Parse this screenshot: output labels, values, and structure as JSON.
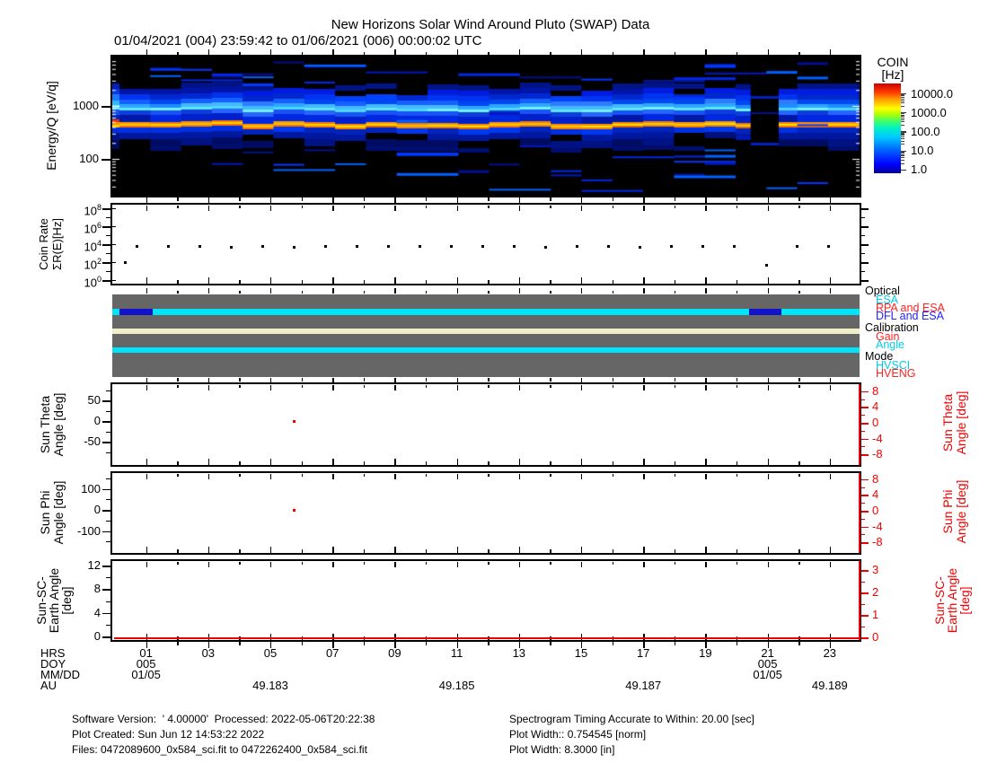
{
  "title": "New Horizons Solar Wind Around Pluto (SWAP) Data",
  "subtitle": "01/04/2021 (004) 23:59:42 to 01/06/2021 (006) 00:00:02 UTC",
  "colors": {
    "red_accent": "#f00000",
    "status_gray": "#666666",
    "stripe_cyan": "#00e4fa",
    "stripe_cream": "#f1edc6",
    "stripe_blue": "#1212cc",
    "label_cyan": "#00ccee",
    "label_red": "#ff2222",
    "label_blue": "#2222ff"
  },
  "colorbar": {
    "title1": "COIN",
    "title2": "[Hz]",
    "labels": [
      "10000.0",
      "1000.0",
      "100.0",
      "10.0",
      "1.0"
    ]
  },
  "spectrogram": {
    "ylabel": "Energy/Q [eV/q]",
    "yticks": [
      "1000",
      "100"
    ]
  },
  "coin_rate": {
    "ylabel1": "Coin Rate",
    "ylabel2": "ΣR(E)[Hz]",
    "ytick_exps": [
      "8",
      "6",
      "4",
      "2",
      "0"
    ]
  },
  "status": {
    "groups": [
      {
        "label": "Optical",
        "items": [
          {
            "label": "ESA",
            "color": "label_cyan"
          },
          {
            "label": "RPA and ESA",
            "color": "label_red"
          },
          {
            "label": "DFL and ESA",
            "color": "label_blue"
          }
        ]
      },
      {
        "label": "Calibration",
        "items": [
          {
            "label": "Gain",
            "color": "label_red"
          },
          {
            "label": "Angle",
            "color": "label_cyan"
          }
        ]
      },
      {
        "label": "Mode",
        "items": [
          {
            "label": "HVSCI",
            "color": "label_cyan"
          },
          {
            "label": "HVENG",
            "color": "label_red"
          }
        ]
      }
    ],
    "bars": [
      {
        "row": "Optical",
        "color": "stripe_cyan",
        "y_rel": 16,
        "h": 7,
        "overlays": [
          {
            "label": "DFL and ESA",
            "color": "stripe_blue",
            "hour_range": [
              0.23,
              1.3
            ]
          },
          {
            "label": "DFL and ESA",
            "color": "stripe_blue",
            "hour_range": [
              20.45,
              21.49
            ]
          }
        ]
      },
      {
        "row": "Calibration",
        "color": "stripe_cream",
        "y_rel": 38,
        "h": 6,
        "overlays": []
      },
      {
        "row": "Mode",
        "color": "stripe_cyan",
        "y_rel": 59,
        "h": 6,
        "overlays": []
      }
    ]
  },
  "sun_theta": {
    "ylabel1": "Sun Theta",
    "ylabel2": "Angle [deg]",
    "left_ticks": [
      "50",
      "0",
      "-50"
    ],
    "right_ticks": [
      "8",
      "4",
      "0",
      "-4",
      "-8"
    ]
  },
  "sun_phi": {
    "ylabel1": "Sun Phi",
    "ylabel2": "Angle [deg]",
    "left_ticks": [
      "100",
      "0",
      "-100"
    ],
    "right_ticks": [
      "8",
      "4",
      "0",
      "-4",
      "-8"
    ]
  },
  "sun_sc_earth": {
    "ylabel1": "Sun-SC-",
    "ylabel2": "Earth Angle",
    "ylabel3": "[deg]",
    "left_ticks": [
      "12",
      "8",
      "4",
      "0"
    ],
    "right_ticks": [
      "3",
      "2",
      "1",
      "0"
    ]
  },
  "xaxis": {
    "row_labels": [
      "HRS",
      "DOY",
      "MM/DD",
      "AU"
    ],
    "hour_labels": [
      {
        "hour": 1,
        "text": "01"
      },
      {
        "hour": 3,
        "text": "03"
      },
      {
        "hour": 5,
        "text": "05"
      },
      {
        "hour": 7,
        "text": "07"
      },
      {
        "hour": 9,
        "text": "09"
      },
      {
        "hour": 11,
        "text": "11"
      },
      {
        "hour": 13,
        "text": "13"
      },
      {
        "hour": 15,
        "text": "15"
      },
      {
        "hour": 17,
        "text": "17"
      },
      {
        "hour": 19,
        "text": "19"
      },
      {
        "hour": 21,
        "text": "21"
      },
      {
        "hour": 23,
        "text": "23"
      }
    ],
    "doy_labels": [
      {
        "hour": 1,
        "text": "005"
      },
      {
        "hour": 21,
        "text": "005"
      }
    ],
    "mmdd_labels": [
      {
        "hour": 1,
        "text": "01/05"
      },
      {
        "hour": 21,
        "text": "01/05"
      }
    ],
    "au_labels": [
      {
        "hour": 5,
        "text": "49.183"
      },
      {
        "hour": 11,
        "text": "49.185"
      },
      {
        "hour": 17,
        "text": "49.187"
      },
      {
        "hour": 23,
        "text": "49.189"
      }
    ]
  },
  "footer": {
    "left": [
      "Software Version:  ' 4.00000'  Processed: 2022-05-06T20:22:38",
      "Plot Created: Sun Jun 12 14:53:22 2022",
      "Files: 0472089600_0x584_sci.fit to 0472262400_0x584_sci.fit"
    ],
    "right": [
      "Spectrogram Timing Accurate to Within: 20.00 [sec]",
      "Plot Width:: 0.754545 [norm]",
      "Plot Width: 8.3000 [in]"
    ]
  },
  "chart_data": [
    {
      "type": "heatmap",
      "name": "energy-time spectrogram",
      "x_axis": "Time [UTC hours of 2021-01-05]",
      "x_range": [
        0,
        24
      ],
      "y_axis": "Energy/Q [eV/q]",
      "y_scale": "log",
      "y_range": [
        20,
        8000
      ],
      "z_axis": "COIN [Hz]",
      "z_scale": "log",
      "z_range": [
        1,
        10000
      ],
      "legend_position": "right colorbar",
      "features": [
        {
          "label": "persistent cyan enhancement",
          "energy_evq": 900,
          "coin_hz": 200
        },
        {
          "label": "persistent yellow-orange solar-wind beam",
          "energy_evq": 480,
          "coin_hz": 4000
        },
        {
          "label": "broad blue proton band",
          "energy_range_evq": [
            150,
            2500
          ],
          "coin_hz": 5
        },
        {
          "label": "instrument-mode gap (DFL and ESA)",
          "hour_range": [
            20.5,
            21.4
          ]
        }
      ],
      "noise_seed": 13
    },
    {
      "type": "scatter",
      "name": "coin rate",
      "x_axis": "Time [hours]",
      "y_axis": "ΣR(E) [Hz]",
      "y_scale": "log",
      "y_range": [
        1,
        100000000
      ],
      "points_hour_hz": [
        [
          0.43,
          80
        ],
        [
          0.78,
          5600
        ],
        [
          1.79,
          6000
        ],
        [
          2.8,
          5200
        ],
        [
          3.81,
          5000
        ],
        [
          4.82,
          5200
        ],
        [
          5.83,
          4800
        ],
        [
          6.84,
          5200
        ],
        [
          7.85,
          5400
        ],
        [
          8.86,
          6000
        ],
        [
          9.87,
          5400
        ],
        [
          10.88,
          5600
        ],
        [
          11.89,
          5400
        ],
        [
          12.9,
          5600
        ],
        [
          13.91,
          5000
        ],
        [
          14.92,
          5200
        ],
        [
          15.93,
          5200
        ],
        [
          16.94,
          4800
        ],
        [
          17.95,
          5400
        ],
        [
          18.96,
          5400
        ],
        [
          19.97,
          5200
        ],
        [
          21.0,
          40
        ],
        [
          21.98,
          5400
        ],
        [
          22.99,
          5500
        ]
      ]
    },
    {
      "type": "scatter",
      "name": "sun theta angle",
      "y_axis": "Sun Theta Angle [deg]",
      "y_range": [
        -90,
        90
      ],
      "points_hour_deg": [
        [
          5.83,
          0
        ]
      ]
    },
    {
      "type": "scatter",
      "name": "sun phi angle",
      "y_axis": "Sun Phi Angle [deg]",
      "y_range": [
        -180,
        180
      ],
      "points_hour_deg": [
        [
          5.83,
          0
        ]
      ]
    },
    {
      "type": "line",
      "name": "sun-sc-earth angle",
      "y_axis": "Sun-SC-Earth Angle [deg]",
      "y_range": [
        0,
        13
      ],
      "points_hour_deg": [
        [
          0,
          0.05
        ],
        [
          24,
          0.05
        ]
      ]
    }
  ]
}
